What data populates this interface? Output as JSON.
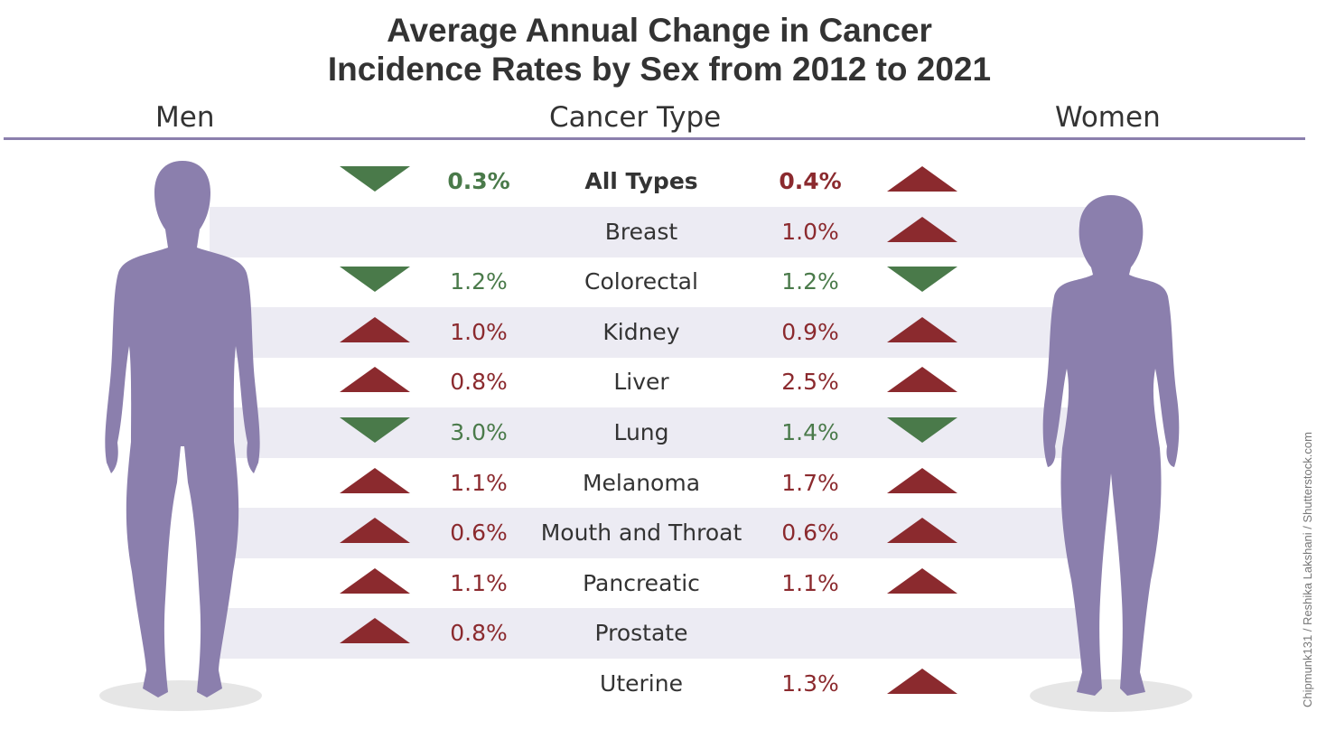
{
  "colors": {
    "increase": "#8b2a2e",
    "decrease": "#4a7a4a",
    "silhouette": "#8b7fad",
    "band": "#ecebf3"
  },
  "headers": {
    "men": "Men",
    "cancer_type": "Cancer Type",
    "women": "Women"
  },
  "credit": "Chipmunk131 / Reshika Lakshani / Shutterstock.com",
  "chart_data": {
    "type": "table",
    "title": "Average Annual Change in Cancer Incidence Rates by Sex from 2012 to 2021",
    "title_lines": [
      "Average Annual Change in Cancer",
      "Incidence Rates by Sex from 2012 to 2021"
    ],
    "columns": [
      "Men",
      "Cancer Type",
      "Women"
    ],
    "rows": [
      {
        "type": "All Types",
        "men": {
          "label": "0.3%",
          "value": 0.3,
          "direction": "down"
        },
        "women": {
          "label": "0.4%",
          "value": 0.4,
          "direction": "up"
        }
      },
      {
        "type": "Breast",
        "men": null,
        "women": {
          "label": "1.0%",
          "value": 1.0,
          "direction": "up"
        }
      },
      {
        "type": "Colorectal",
        "men": {
          "label": "1.2%",
          "value": 1.2,
          "direction": "down"
        },
        "women": {
          "label": "1.2%",
          "value": 1.2,
          "direction": "down"
        }
      },
      {
        "type": "Kidney",
        "men": {
          "label": "1.0%",
          "value": 1.0,
          "direction": "up"
        },
        "women": {
          "label": "0.9%",
          "value": 0.9,
          "direction": "up"
        }
      },
      {
        "type": "Liver",
        "men": {
          "label": "0.8%",
          "value": 0.8,
          "direction": "up"
        },
        "women": {
          "label": "2.5%",
          "value": 2.5,
          "direction": "up"
        }
      },
      {
        "type": "Lung",
        "men": {
          "label": "3.0%",
          "value": 3.0,
          "direction": "down"
        },
        "women": {
          "label": "1.4%",
          "value": 1.4,
          "direction": "down"
        }
      },
      {
        "type": "Melanoma",
        "men": {
          "label": "1.1%",
          "value": 1.1,
          "direction": "up"
        },
        "women": {
          "label": "1.7%",
          "value": 1.7,
          "direction": "up"
        }
      },
      {
        "type": "Mouth and Throat",
        "men": {
          "label": "0.6%",
          "value": 0.6,
          "direction": "up"
        },
        "women": {
          "label": "0.6%",
          "value": 0.6,
          "direction": "up"
        }
      },
      {
        "type": "Pancreatic",
        "men": {
          "label": "1.1%",
          "value": 1.1,
          "direction": "up"
        },
        "women": {
          "label": "1.1%",
          "value": 1.1,
          "direction": "up"
        }
      },
      {
        "type": "Prostate",
        "men": {
          "label": "0.8%",
          "value": 0.8,
          "direction": "up"
        },
        "women": null
      },
      {
        "type": "Uterine",
        "men": null,
        "women": {
          "label": "1.3%",
          "value": 1.3,
          "direction": "up"
        }
      }
    ]
  }
}
